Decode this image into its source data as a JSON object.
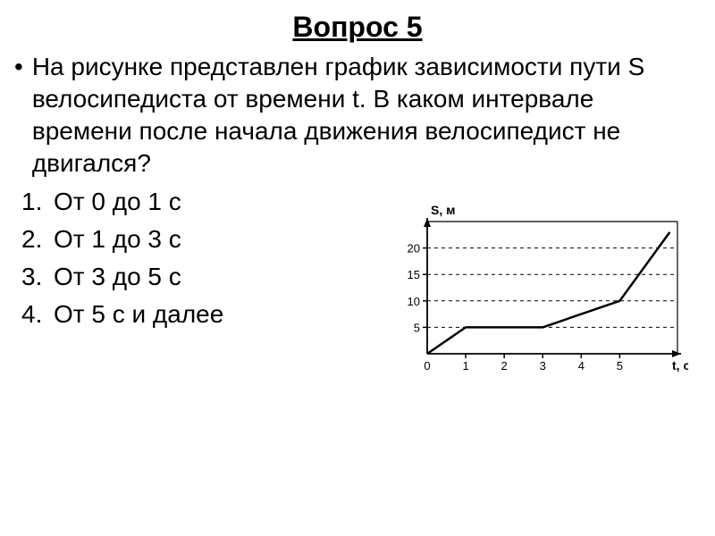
{
  "title": "Вопрос 5",
  "question": "На рисунке представлен график зависимости пути S велосипедиста от времени t. В каком интервале времени после начала движения велосипедист  не двигался?",
  "answers": [
    {
      "num": "1.",
      "text": "От 0 до 1 с"
    },
    {
      "num": "2.",
      "text": "От 1 до 3 с"
    },
    {
      "num": "3.",
      "text": "От 3 до 5 с"
    },
    {
      "num": "4.",
      "text": "От 5 с и далее"
    }
  ],
  "chart": {
    "type": "line",
    "y_label": "S, м",
    "x_label": "t, с",
    "x_ticks": [
      0,
      1,
      2,
      3,
      4,
      5
    ],
    "y_ticks": [
      5,
      10,
      15,
      20
    ],
    "x_range": [
      0,
      6.5
    ],
    "y_range": [
      0,
      25
    ],
    "data_points": [
      {
        "x": 0,
        "y": 0
      },
      {
        "x": 1,
        "y": 5
      },
      {
        "x": 3,
        "y": 5
      },
      {
        "x": 5,
        "y": 10
      },
      {
        "x": 6.3,
        "y": 23
      }
    ],
    "line_color": "#000000",
    "line_width": 2.5,
    "axis_color": "#000000",
    "tick_color": "#000000",
    "dash_color": "#000000",
    "background_color": "#ffffff",
    "label_fontsize": 14,
    "tick_fontsize": 13
  }
}
